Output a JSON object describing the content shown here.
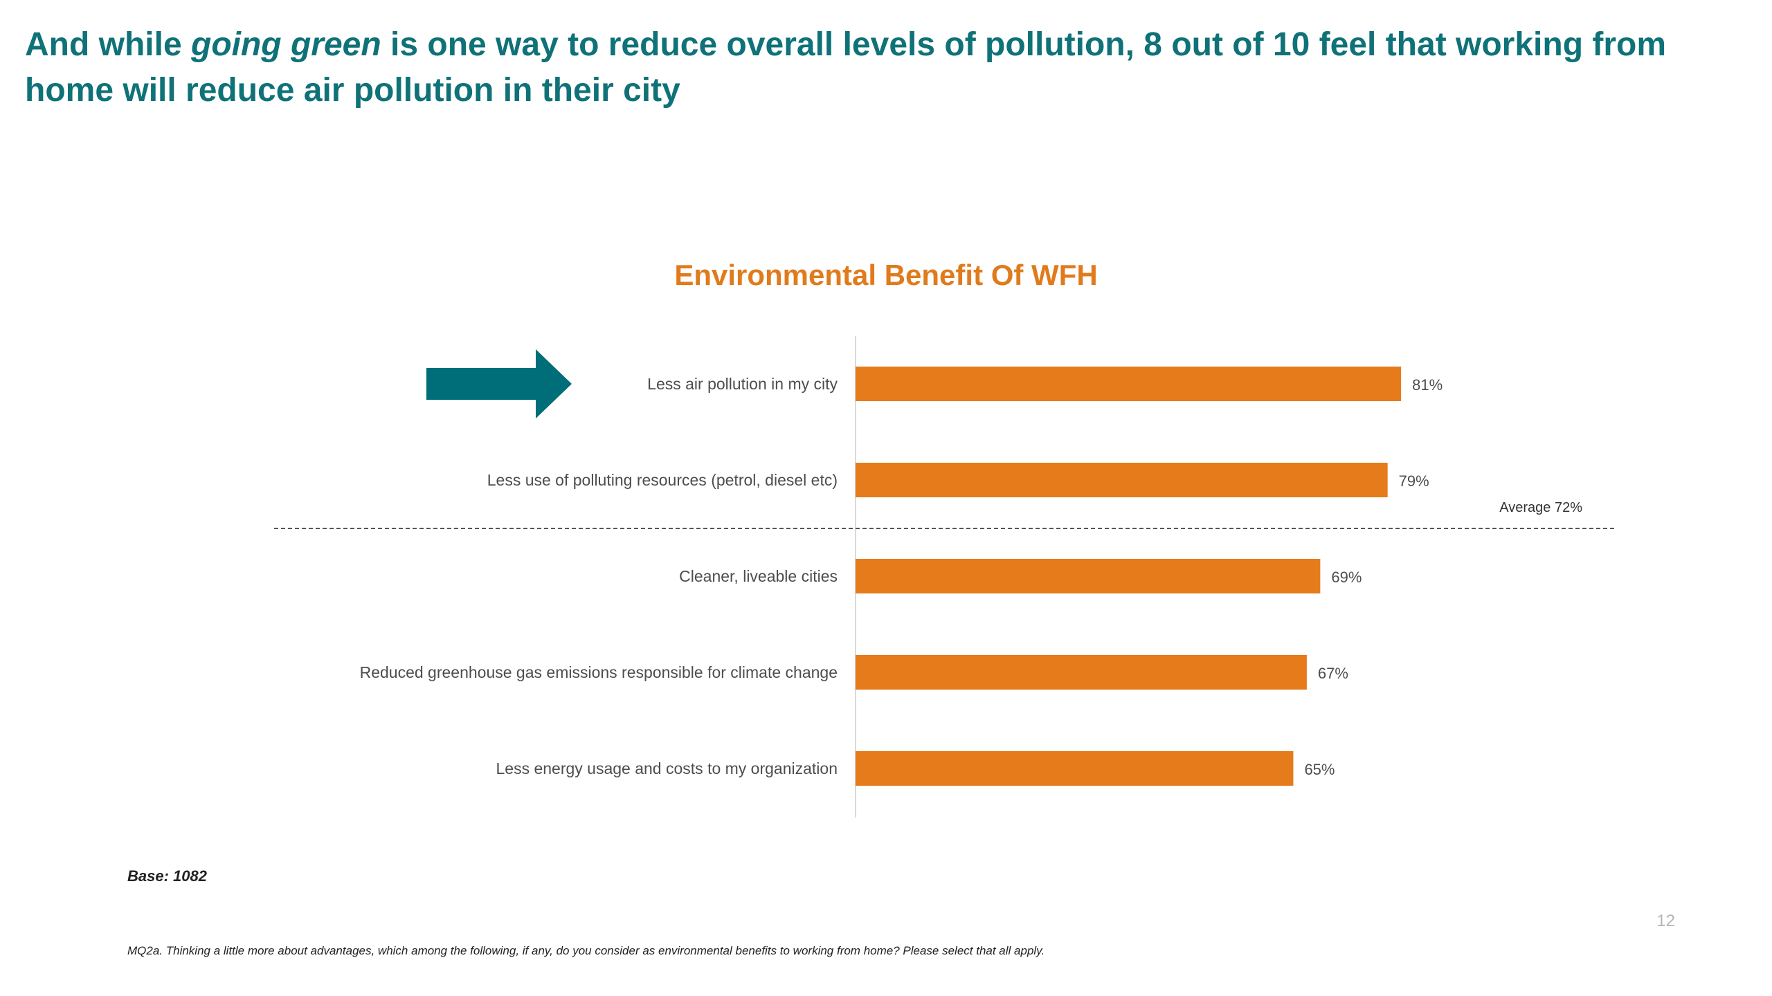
{
  "headline": {
    "part1": "And while ",
    "emphasis": "going green",
    "part2": " is one way to reduce overall levels of pollution, 8 out of 10 feel that working from home will reduce air pollution in their city"
  },
  "footer": {
    "base": "Base: 1082",
    "page_number": "12",
    "question": "MQ2a. Thinking a little more about advantages, which among the following, if any, do you consider as environmental benefits to working from home? Please select that all apply."
  },
  "colors": {
    "bar": "#e57b1a",
    "accent": "#0f7278",
    "arrow": "#006e78"
  },
  "chart_data": {
    "type": "bar",
    "orientation": "horizontal",
    "title": "Environmental Benefit Of WFH",
    "categories": [
      "Less air pollution in my city",
      "Less use of polluting resources (petrol, diesel etc)",
      "Cleaner, liveable cities",
      "Reduced greenhouse gas emissions responsible for climate change",
      "Less energy usage and costs to my organization"
    ],
    "values": [
      81,
      79,
      69,
      67,
      65
    ],
    "value_labels": [
      "81%",
      "79%",
      "69%",
      "67%",
      "65%"
    ],
    "xlim": [
      0,
      100
    ],
    "unit": "%",
    "grid": false,
    "reference_line": {
      "label": "Average 72%",
      "value": 72
    },
    "highlight_arrow_category_index": 0
  }
}
